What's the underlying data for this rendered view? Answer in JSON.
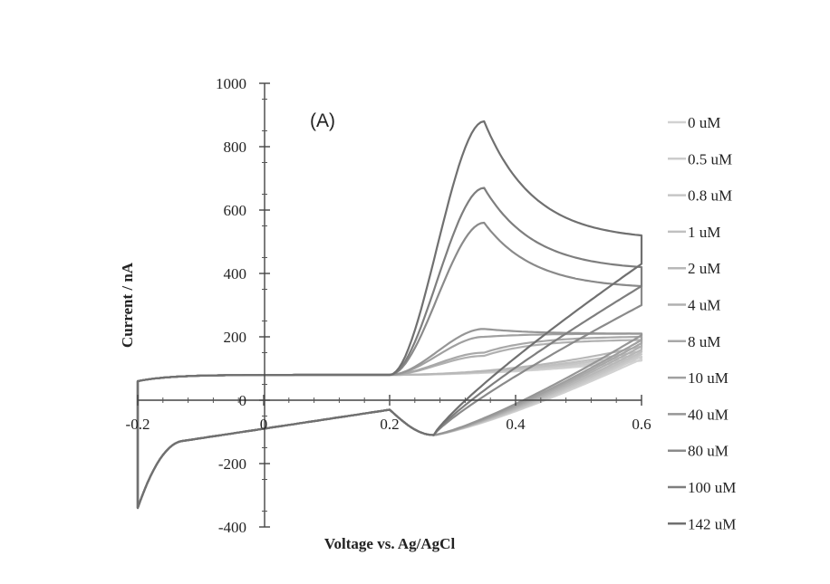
{
  "chart_data": {
    "type": "line",
    "panel_label": "(A)",
    "xlabel": "Voltage vs. Ag/AgCl",
    "ylabel": "Current / nA",
    "xlim": [
      -0.2,
      0.6
    ],
    "ylim": [
      -400,
      1000
    ],
    "x_ticks": [
      {
        "value": -0.2,
        "label": "-0.2"
      },
      {
        "value": 0,
        "label": "0"
      },
      {
        "value": 0.2,
        "label": "0.2"
      },
      {
        "value": 0.4,
        "label": "0.4"
      },
      {
        "value": 0.6,
        "label": "0.6"
      }
    ],
    "y_ticks": [
      {
        "value": 1000,
        "label": "1000"
      },
      {
        "value": 800,
        "label": "800"
      },
      {
        "value": 600,
        "label": "600"
      },
      {
        "value": 400,
        "label": "400"
      },
      {
        "value": 200,
        "label": "200"
      },
      {
        "value": 0,
        "label": "0"
      },
      {
        "value": -200,
        "label": "-200"
      },
      {
        "value": -400,
        "label": "-400"
      }
    ],
    "legend_position": "right",
    "grid": false,
    "series": [
      {
        "name": "0 uM",
        "color": "#d2d2d2",
        "peak": 0,
        "high_end": 125,
        "tail_start": 0.5,
        "ret_end": 130
      },
      {
        "name": "0.5 uM",
        "color": "#cccccc",
        "peak": 0,
        "high_end": 135,
        "tail_start": 0.5,
        "ret_end": 138
      },
      {
        "name": "0.8 uM",
        "color": "#c6c6c6",
        "peak": 0,
        "high_end": 145,
        "tail_start": 0.49,
        "ret_end": 145
      },
      {
        "name": "1 uM",
        "color": "#c0c0c0",
        "peak": 0,
        "high_end": 155,
        "tail_start": 0.48,
        "ret_end": 152
      },
      {
        "name": "2 uM",
        "color": "#b8b8b8",
        "peak": 0,
        "high_end": 170,
        "tail_start": 0.46,
        "ret_end": 160
      },
      {
        "name": "4 uM",
        "color": "#b0b0b0",
        "peak": 140,
        "high_end": 190,
        "tail_start": 0.48,
        "ret_end": 170
      },
      {
        "name": "8 uM",
        "color": "#a8a8a8",
        "peak": 150,
        "high_end": 200,
        "tail_start": 0.48,
        "ret_end": 180
      },
      {
        "name": "10 uM",
        "color": "#a0a0a0",
        "peak": 200,
        "high_end": 210,
        "tail_start": 0.47,
        "ret_end": 190
      },
      {
        "name": "40 uM",
        "color": "#969696",
        "peak": 225,
        "high_end": 210,
        "tail_start": 0.46,
        "ret_end": 205
      },
      {
        "name": "80 uM",
        "color": "#8a8a8a",
        "peak": 560,
        "high_end": 360,
        "tail_start": 0.38,
        "ret_end": 300
      },
      {
        "name": "100 uM",
        "color": "#7e7e7e",
        "peak": 670,
        "high_end": 420,
        "tail_start": 0.38,
        "ret_end": 360
      },
      {
        "name": "142 uM",
        "color": "#707070",
        "peak": 880,
        "high_end": 520,
        "tail_start": 0.37,
        "ret_end": 430
      }
    ]
  }
}
